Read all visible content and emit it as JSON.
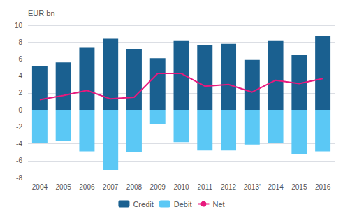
{
  "chart_data": {
    "type": "bar",
    "ylabel": "EUR bn",
    "categories": [
      "2004",
      "2005",
      "2006",
      "2007",
      "2008",
      "2009",
      "2010",
      "2011",
      "2012",
      "2013'",
      "2014",
      "2015",
      "2016"
    ],
    "series": [
      {
        "name": "Credit",
        "type": "bar",
        "color": "#1a6090",
        "values": [
          5.2,
          5.6,
          7.4,
          8.4,
          7.2,
          6.1,
          8.2,
          7.6,
          7.8,
          5.9,
          8.2,
          6.5,
          8.7
        ]
      },
      {
        "name": "Debit",
        "type": "bar",
        "color": "#5bc8f5",
        "values": [
          -3.9,
          -3.7,
          -4.9,
          -7.1,
          -5.0,
          -1.7,
          -3.8,
          -4.8,
          -4.8,
          -4.1,
          -3.9,
          -5.2,
          -4.9
        ]
      },
      {
        "name": "Net",
        "type": "line",
        "color": "#e8197d",
        "values": [
          1.2,
          1.7,
          2.3,
          1.3,
          1.5,
          4.3,
          4.3,
          2.8,
          3.0,
          2.1,
          3.5,
          3.1,
          3.7
        ]
      }
    ],
    "ylim": [
      -8,
      10
    ],
    "yticks": [
      -8,
      -6,
      -4,
      -2,
      0,
      2,
      4,
      6,
      8,
      10
    ],
    "grid": true,
    "legend": "bottom"
  }
}
